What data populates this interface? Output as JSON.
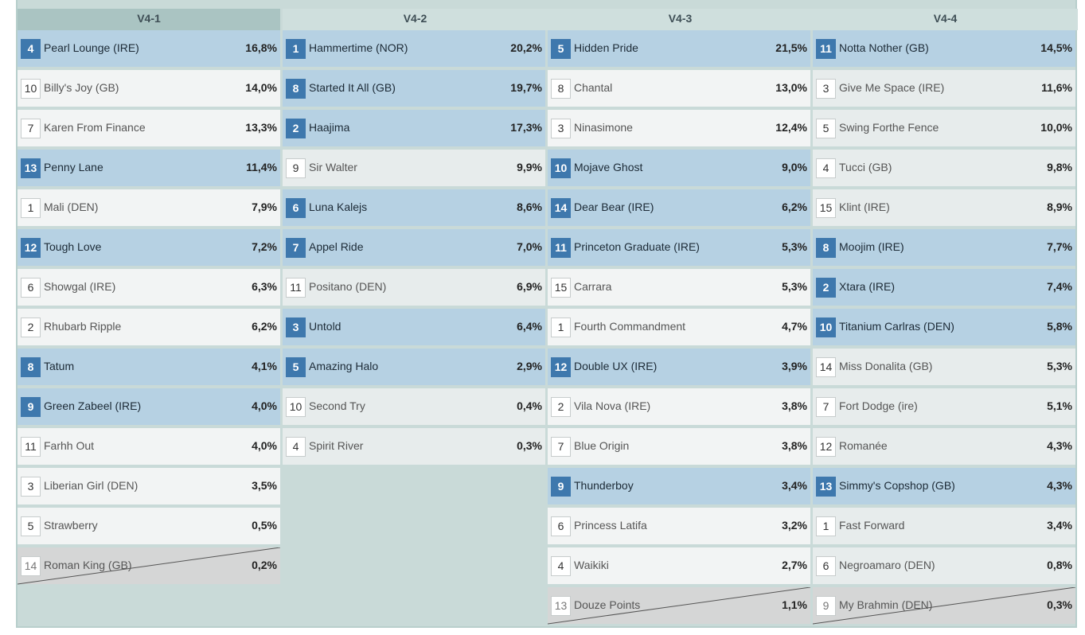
{
  "columns": [
    {
      "title": "V4-1",
      "active": true,
      "runners": [
        {
          "number": "4",
          "name": "Pearl Lounge (IRE)",
          "pct": "16,8%",
          "state": "selected"
        },
        {
          "number": "10",
          "name": "Billy's Joy (GB)",
          "pct": "14,0%",
          "state": "unselected"
        },
        {
          "number": "7",
          "name": "Karen From Finance",
          "pct": "13,3%",
          "state": "unselected"
        },
        {
          "number": "13",
          "name": "Penny Lane",
          "pct": "11,4%",
          "state": "selected"
        },
        {
          "number": "1",
          "name": "Mali (DEN)",
          "pct": "7,9%",
          "state": "unselected"
        },
        {
          "number": "12",
          "name": "Tough Love",
          "pct": "7,2%",
          "state": "selected"
        },
        {
          "number": "6",
          "name": "Showgal (IRE)",
          "pct": "6,3%",
          "state": "unselected"
        },
        {
          "number": "2",
          "name": "Rhubarb Ripple",
          "pct": "6,2%",
          "state": "unselected"
        },
        {
          "number": "8",
          "name": "Tatum",
          "pct": "4,1%",
          "state": "selected"
        },
        {
          "number": "9",
          "name": "Green Zabeel (IRE)",
          "pct": "4,0%",
          "state": "selected"
        },
        {
          "number": "11",
          "name": "Farhh Out",
          "pct": "4,0%",
          "state": "unselected"
        },
        {
          "number": "3",
          "name": "Liberian Girl (DEN)",
          "pct": "3,5%",
          "state": "unselected"
        },
        {
          "number": "5",
          "name": "Strawberry",
          "pct": "0,5%",
          "state": "unselected"
        },
        {
          "number": "14",
          "name": "Roman King (GB)",
          "pct": "0,2%",
          "state": "scratched"
        }
      ]
    },
    {
      "title": "V4-2",
      "active": false,
      "runners": [
        {
          "number": "1",
          "name": "Hammertime (NOR)",
          "pct": "20,2%",
          "state": "selected"
        },
        {
          "number": "8",
          "name": "Started It All (GB)",
          "pct": "19,7%",
          "state": "selected"
        },
        {
          "number": "2",
          "name": "Haajima",
          "pct": "17,3%",
          "state": "selected"
        },
        {
          "number": "9",
          "name": "Sir Walter",
          "pct": "9,9%",
          "state": "unselected"
        },
        {
          "number": "6",
          "name": "Luna Kalejs",
          "pct": "8,6%",
          "state": "selected"
        },
        {
          "number": "7",
          "name": "Appel Ride",
          "pct": "7,0%",
          "state": "selected"
        },
        {
          "number": "11",
          "name": "Positano (DEN)",
          "pct": "6,9%",
          "state": "unselected"
        },
        {
          "number": "3",
          "name": "Untold",
          "pct": "6,4%",
          "state": "selected"
        },
        {
          "number": "5",
          "name": "Amazing Halo",
          "pct": "2,9%",
          "state": "selected"
        },
        {
          "number": "10",
          "name": "Second Try",
          "pct": "0,4%",
          "state": "unselected"
        },
        {
          "number": "4",
          "name": "Spirit River",
          "pct": "0,3%",
          "state": "unselected"
        }
      ]
    },
    {
      "title": "V4-3",
      "active": false,
      "runners": [
        {
          "number": "5",
          "name": "Hidden Pride",
          "pct": "21,5%",
          "state": "selected"
        },
        {
          "number": "8",
          "name": "Chantal",
          "pct": "13,0%",
          "state": "unselected"
        },
        {
          "number": "3",
          "name": "Ninasimone",
          "pct": "12,4%",
          "state": "unselected"
        },
        {
          "number": "10",
          "name": "Mojave Ghost",
          "pct": "9,0%",
          "state": "selected"
        },
        {
          "number": "14",
          "name": "Dear Bear (IRE)",
          "pct": "6,2%",
          "state": "selected"
        },
        {
          "number": "11",
          "name": "Princeton Graduate (IRE)",
          "pct": "5,3%",
          "state": "selected"
        },
        {
          "number": "15",
          "name": "Carrara",
          "pct": "5,3%",
          "state": "unselected"
        },
        {
          "number": "1",
          "name": "Fourth Commandment",
          "pct": "4,7%",
          "state": "unselected"
        },
        {
          "number": "12",
          "name": "Double UX (IRE)",
          "pct": "3,9%",
          "state": "selected"
        },
        {
          "number": "2",
          "name": "Vila Nova (IRE)",
          "pct": "3,8%",
          "state": "unselected"
        },
        {
          "number": "7",
          "name": "Blue Origin",
          "pct": "3,8%",
          "state": "unselected"
        },
        {
          "number": "9",
          "name": "Thunderboy",
          "pct": "3,4%",
          "state": "selected"
        },
        {
          "number": "6",
          "name": "Princess Latifa",
          "pct": "3,2%",
          "state": "unselected"
        },
        {
          "number": "4",
          "name": "Waikiki",
          "pct": "2,7%",
          "state": "unselected"
        },
        {
          "number": "13",
          "name": "Douze Points",
          "pct": "1,1%",
          "state": "scratched"
        }
      ]
    },
    {
      "title": "V4-4",
      "active": false,
      "runners": [
        {
          "number": "11",
          "name": "Notta Nother (GB)",
          "pct": "14,5%",
          "state": "selected"
        },
        {
          "number": "3",
          "name": "Give Me Space (IRE)",
          "pct": "11,6%",
          "state": "unselected"
        },
        {
          "number": "5",
          "name": "Swing Forthe Fence",
          "pct": "10,0%",
          "state": "unselected"
        },
        {
          "number": "4",
          "name": "Tucci (GB)",
          "pct": "9,8%",
          "state": "unselected"
        },
        {
          "number": "15",
          "name": "Klint (IRE)",
          "pct": "8,9%",
          "state": "unselected"
        },
        {
          "number": "8",
          "name": "Moojim (IRE)",
          "pct": "7,7%",
          "state": "selected"
        },
        {
          "number": "2",
          "name": "Xtara (IRE)",
          "pct": "7,4%",
          "state": "selected"
        },
        {
          "number": "10",
          "name": "Titanium Carlras (DEN)",
          "pct": "5,8%",
          "state": "selected"
        },
        {
          "number": "14",
          "name": "Miss Donalita (GB)",
          "pct": "5,3%",
          "state": "unselected"
        },
        {
          "number": "7",
          "name": "Fort Dodge (ire)",
          "pct": "5,1%",
          "state": "unselected"
        },
        {
          "number": "12",
          "name": "Romanée",
          "pct": "4,3%",
          "state": "unselected"
        },
        {
          "number": "13",
          "name": "Simmy's Copshop (GB)",
          "pct": "4,3%",
          "state": "selected"
        },
        {
          "number": "1",
          "name": "Fast Forward",
          "pct": "3,4%",
          "state": "unselected"
        },
        {
          "number": "6",
          "name": "Negroamaro (DEN)",
          "pct": "0,8%",
          "state": "unselected"
        },
        {
          "number": "9",
          "name": "My Brahmin (DEN)",
          "pct": "0,3%",
          "state": "scratched"
        }
      ]
    }
  ]
}
